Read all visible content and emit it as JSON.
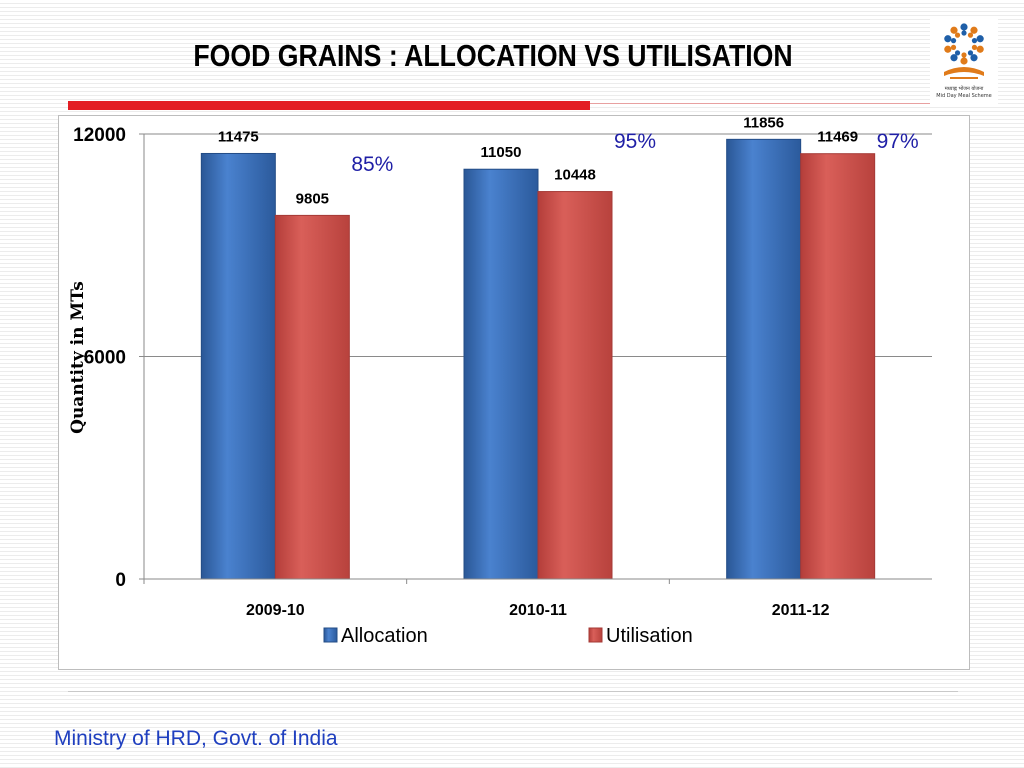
{
  "slide": {
    "title": "FOOD GRAINS : ALLOCATION VS UTILISATION",
    "footer": "Ministry of HRD, Govt. of India",
    "logo_caption_line1": "मध्याह्न भोजन योजना",
    "logo_caption_line2": "Mid Day Meal Scheme",
    "logo_icon": "mid-day-meal-logo"
  },
  "colors": {
    "title_rule": "#e31e24",
    "allocation": "#3d73c0",
    "utilisation": "#cf5550",
    "percent_text": "#1f1fa6",
    "footer_text": "#1f3fbf"
  },
  "chart_data": {
    "type": "bar",
    "categories": [
      "2009-10",
      "2010-11",
      "2011-12"
    ],
    "series": [
      {
        "name": "Allocation",
        "values": [
          11475,
          11050,
          11856
        ]
      },
      {
        "name": "Utilisation",
        "values": [
          9805,
          10448,
          11469
        ]
      }
    ],
    "value_labels": [
      [
        "11475",
        "11050",
        "11856"
      ],
      [
        "9805",
        "10448",
        "11469"
      ]
    ],
    "annotations": [
      "85%",
      "95%",
      "97%"
    ],
    "ylabel": "Quantity in MTs",
    "xlabel": "",
    "ylim": [
      0,
      12000
    ],
    "yticks": [
      0,
      6000,
      12000
    ],
    "ytick_labels": [
      "0",
      "6000",
      "12000"
    ],
    "grid": true,
    "legend": "bottom"
  }
}
